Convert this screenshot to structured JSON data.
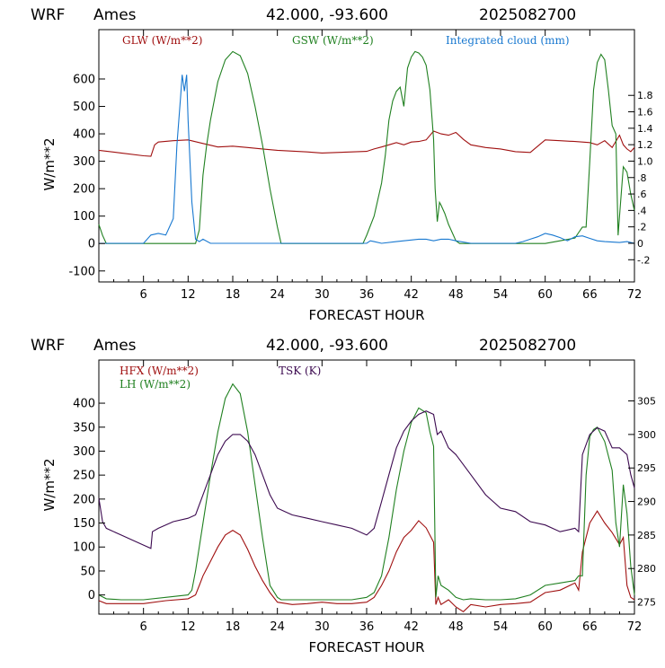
{
  "header": {
    "model": "WRF",
    "station": "Ames",
    "coords": "42.000, -93.600",
    "run": "2025082700"
  },
  "colors": {
    "red": "#a01010",
    "green": "#208020",
    "blue": "#1878d0",
    "purple": "#3c0a50"
  },
  "chart_data": [
    {
      "type": "line",
      "xlabel": "FORECAST HOUR",
      "ylabel": "W/m**2",
      "xlim": [
        0,
        72
      ],
      "ylim": [
        -140,
        780
      ],
      "xticks": [
        6,
        12,
        18,
        24,
        30,
        36,
        42,
        48,
        54,
        60,
        66,
        72
      ],
      "xtick_labels": [
        "6",
        "12",
        "18",
        "24",
        "30",
        "36",
        "42",
        "48",
        "54",
        "60",
        "66",
        "72"
      ],
      "yticks": [
        -100,
        0,
        100,
        200,
        300,
        400,
        500,
        600
      ],
      "ytick_labels": [
        "-100",
        "0",
        "100",
        "200",
        "300",
        "400",
        "500",
        "600"
      ],
      "y2lim": [
        -0.47,
        2.6
      ],
      "y2ticks": [
        -0.2,
        0,
        0.2,
        0.4,
        0.6,
        0.8,
        1.0,
        1.2,
        1.4,
        1.6,
        1.8
      ],
      "y2tick_labels": [
        "-.2",
        "0",
        ".2",
        ".4",
        ".6",
        ".8",
        "1.0",
        "1.2",
        "1.4",
        "1.6",
        "1.8"
      ],
      "series": [
        {
          "name": "GLW (W/m**2)",
          "color": "red",
          "axis": "left",
          "x": [
            0,
            3,
            6,
            7,
            7.5,
            8,
            10,
            12,
            14,
            16,
            18,
            20,
            22,
            24,
            26,
            28,
            30,
            32,
            34,
            36,
            37,
            38,
            39,
            40,
            41,
            42,
            43,
            44,
            45,
            46,
            47,
            48,
            49,
            50,
            52,
            54,
            56,
            58,
            60,
            62,
            64,
            65,
            66,
            67,
            68,
            69,
            70,
            70.5,
            71,
            71.5,
            72
          ],
          "y": [
            340,
            330,
            320,
            318,
            360,
            370,
            375,
            378,
            365,
            352,
            355,
            350,
            345,
            340,
            337,
            334,
            330,
            332,
            334,
            336,
            345,
            352,
            360,
            368,
            360,
            370,
            372,
            378,
            410,
            400,
            395,
            405,
            380,
            360,
            350,
            345,
            335,
            332,
            378,
            375,
            372,
            370,
            368,
            360,
            375,
            350,
            395,
            360,
            345,
            335,
            350
          ]
        },
        {
          "name": "GSW (W/m**2)",
          "color": "green",
          "axis": "left",
          "x": [
            0,
            0.5,
            1,
            1.5,
            13,
            13.5,
            14,
            14.5,
            15,
            16,
            17,
            18,
            19,
            20,
            21,
            22,
            23,
            24,
            24.5,
            35.5,
            36,
            37,
            38,
            38.5,
            39,
            39.5,
            40,
            40.5,
            41,
            41.5,
            42,
            42.5,
            43,
            43.5,
            44,
            44.5,
            45,
            45.2,
            45.5,
            45.8,
            46,
            46.5,
            47,
            47.5,
            48,
            48.5,
            49,
            52,
            56,
            60,
            62,
            64,
            64.5,
            65,
            65.5,
            66,
            66.5,
            67,
            67.5,
            68,
            68.5,
            69,
            69.5,
            69.8,
            70,
            70.5,
            71,
            71.5,
            72
          ],
          "y": [
            70,
            30,
            0,
            0,
            0,
            50,
            250,
            360,
            450,
            590,
            670,
            700,
            685,
            620,
            500,
            360,
            200,
            60,
            0,
            0,
            30,
            100,
            220,
            320,
            450,
            520,
            555,
            570,
            500,
            640,
            680,
            700,
            695,
            680,
            650,
            560,
            380,
            200,
            80,
            150,
            140,
            110,
            70,
            40,
            10,
            0,
            0,
            0,
            0,
            0,
            10,
            20,
            40,
            60,
            60,
            300,
            560,
            660,
            690,
            670,
            560,
            430,
            400,
            30,
            100,
            280,
            260,
            180,
            120
          ]
        },
        {
          "name": "Integrated cloud (mm)",
          "color": "blue",
          "axis": "right",
          "x": [
            0,
            6,
            7,
            8,
            9,
            10,
            10.5,
            11,
            11.2,
            11.5,
            11.8,
            12,
            12.5,
            13,
            13.5,
            14,
            15,
            16,
            20,
            30,
            36,
            36.5,
            37,
            38,
            40,
            42,
            43,
            44,
            45,
            46,
            47,
            48,
            50,
            56,
            57,
            58,
            59,
            60,
            61,
            62,
            63,
            64,
            65,
            66,
            67,
            68,
            70,
            71,
            72
          ],
          "y": [
            0,
            0,
            0.1,
            0.12,
            0.1,
            0.3,
            1.2,
            1.8,
            2.05,
            1.85,
            2.05,
            1.5,
            0.5,
            0.05,
            0.02,
            0.05,
            0,
            0,
            0,
            0,
            0,
            0.03,
            0.02,
            0,
            0.02,
            0.04,
            0.05,
            0.05,
            0.03,
            0.05,
            0.05,
            0.03,
            0,
            0,
            0.02,
            0.05,
            0.08,
            0.12,
            0.1,
            0.07,
            0.03,
            0.08,
            0.09,
            0.06,
            0.03,
            0.02,
            0.01,
            0.02,
            0
          ]
        }
      ]
    },
    {
      "type": "line",
      "xlabel": "FORECAST HOUR",
      "ylabel": "W/m**2",
      "xlim": [
        0,
        72
      ],
      "ylim": [
        -40,
        490
      ],
      "xticks": [
        6,
        12,
        18,
        24,
        30,
        36,
        42,
        48,
        54,
        60,
        66,
        72
      ],
      "xtick_labels": [
        "6",
        "12",
        "18",
        "24",
        "30",
        "36",
        "42",
        "48",
        "54",
        "60",
        "66",
        "72"
      ],
      "yticks": [
        0,
        50,
        100,
        150,
        200,
        250,
        300,
        350,
        400
      ],
      "ytick_labels": [
        "0",
        "50",
        "100",
        "150",
        "200",
        "250",
        "300",
        "350",
        "400"
      ],
      "y2lim": [
        273.2,
        311.1
      ],
      "y2ticks": [
        275,
        280,
        285,
        290,
        295,
        300,
        305
      ],
      "y2tick_labels": [
        "275",
        "280",
        "285",
        "290",
        "295",
        "300",
        "305"
      ],
      "series": [
        {
          "name": "HFX (W/m**2)",
          "color": "red",
          "axis": "left",
          "x": [
            0,
            1,
            3,
            6,
            9,
            12,
            13,
            13.5,
            14,
            15,
            16,
            17,
            18,
            19,
            20,
            21,
            22,
            23,
            24,
            26,
            28,
            30,
            32,
            34,
            36,
            37,
            38,
            39,
            40,
            41,
            42,
            43,
            44,
            45,
            45.3,
            45.6,
            46,
            47,
            48,
            49,
            50,
            52,
            54,
            56,
            58,
            60,
            62,
            64,
            64.5,
            65,
            66,
            67,
            68,
            69,
            70,
            70.5,
            71,
            71.5,
            72
          ],
          "y": [
            -12,
            -18,
            -18,
            -18,
            -12,
            -8,
            0,
            20,
            40,
            70,
            100,
            125,
            135,
            125,
            95,
            60,
            30,
            5,
            -15,
            -20,
            -18,
            -15,
            -18,
            -18,
            -15,
            -5,
            20,
            50,
            90,
            120,
            135,
            155,
            140,
            110,
            -20,
            -5,
            -20,
            -10,
            -25,
            -35,
            -20,
            -25,
            -20,
            -18,
            -15,
            5,
            10,
            25,
            10,
            90,
            150,
            175,
            150,
            130,
            105,
            120,
            20,
            -5,
            -10
          ]
        },
        {
          "name": "LH (W/m**2)",
          "color": "green",
          "axis": "left",
          "x": [
            0,
            1,
            3,
            6,
            9,
            12,
            12.5,
            13,
            14,
            15,
            16,
            17,
            18,
            19,
            20,
            21,
            22,
            23,
            24,
            24.5,
            26,
            30,
            34,
            36,
            37,
            38,
            39,
            40,
            41,
            42,
            43,
            44,
            44.5,
            45,
            45.3,
            45.6,
            46,
            47,
            48,
            49,
            50,
            52,
            54,
            56,
            58,
            60,
            62,
            64,
            64.5,
            65,
            65.5,
            66,
            66.5,
            67,
            68,
            68.5,
            69,
            69.5,
            70,
            70.5,
            71,
            71.5,
            72
          ],
          "y": [
            0,
            -8,
            -10,
            -10,
            -5,
            0,
            10,
            50,
            150,
            250,
            340,
            410,
            440,
            420,
            340,
            230,
            120,
            20,
            -5,
            -10,
            -10,
            -10,
            -10,
            -5,
            5,
            40,
            120,
            220,
            300,
            360,
            390,
            380,
            340,
            310,
            -5,
            40,
            20,
            10,
            -5,
            -10,
            -8,
            -10,
            -10,
            -8,
            0,
            20,
            25,
            30,
            40,
            40,
            250,
            330,
            345,
            350,
            320,
            290,
            260,
            150,
            100,
            230,
            170,
            60,
            0
          ]
        },
        {
          "name": "TSK (K)",
          "color": "purple",
          "axis": "right",
          "x": [
            0,
            0.5,
            1,
            3,
            5,
            6,
            7,
            7.2,
            8,
            10,
            12,
            13,
            14,
            15,
            16,
            17,
            18,
            19,
            20,
            21,
            22,
            23,
            24,
            25,
            26,
            28,
            30,
            32,
            34,
            36,
            37,
            38,
            39,
            40,
            41,
            42,
            43,
            44,
            45,
            45.5,
            46,
            47,
            48,
            50,
            52,
            54,
            56,
            58,
            60,
            62,
            64,
            64.5,
            65,
            66,
            67,
            68,
            69,
            70,
            70.5,
            71,
            71.5,
            72
          ],
          "y": [
            290.5,
            287,
            286,
            285,
            284,
            283.5,
            283,
            285.5,
            286,
            287,
            287.5,
            288,
            291,
            294,
            297,
            299,
            300,
            300,
            299,
            297,
            294,
            291,
            289,
            288.5,
            288,
            287.5,
            287,
            286.5,
            286,
            285,
            286,
            290,
            294,
            298,
            300.5,
            302,
            303,
            303.5,
            303,
            300,
            300.5,
            298,
            297,
            294,
            291,
            289,
            288.5,
            287,
            286.5,
            285.5,
            286,
            285.5,
            297,
            300,
            301,
            300.5,
            298,
            298,
            297.5,
            297,
            294,
            292
          ]
        }
      ]
    }
  ]
}
